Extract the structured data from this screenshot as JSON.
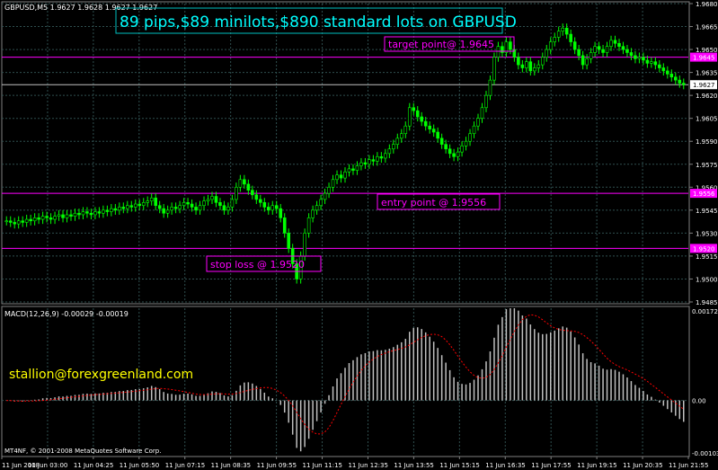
{
  "window": {
    "title": "GBPUSD,M5  1.9627 1.9628 1.9627 1.9627"
  },
  "annotations": {
    "headline": "89 pips,$89 minilots,$890 standard lots on GBPUSD",
    "target": "target point@ 1.9645",
    "entry": "entry point @ 1.9556",
    "stop": "stop loss @ 1.9520",
    "email": "stallion@forexgreenland.com"
  },
  "macd": {
    "label": "MACD(12,26,9) -0.00029 -0.00019"
  },
  "footer": {
    "copyright": "MT4NF, © 2001-2008 MetaQuotes Software Corp."
  },
  "colors": {
    "background": "#000000",
    "candles": "#00ff00",
    "grid": "#2f4f4f",
    "levels": "#ff00ff",
    "headline": "#00ffff",
    "email": "#ffff00",
    "histogram": "#c0c0c0",
    "signal": "#ff0000",
    "current_price_line": "#c0c0c0"
  },
  "chart_data": [
    {
      "type": "candlestick",
      "symbol": "GBPUSD",
      "timeframe": "M5",
      "ylim": [
        1.9485,
        1.968
      ],
      "y_ticks": [
        "1.9680",
        "1.9665",
        "1.9650",
        "1.9635",
        "1.9620",
        "1.9605",
        "1.9590",
        "1.9575",
        "1.9560",
        "1.9545",
        "1.9530",
        "1.9515",
        "1.9500",
        "1.9485"
      ],
      "price_labels": [
        "1.9645",
        "1.9627",
        "1.9556",
        "1.9520"
      ],
      "levels": [
        {
          "name": "target",
          "value": 1.9645
        },
        {
          "name": "entry",
          "value": 1.9556
        },
        {
          "name": "stop",
          "value": 1.952
        }
      ],
      "current_price": 1.9627,
      "x_tick_labels": [
        "11 Jun 2008",
        "11 Jun 03:00",
        "11 Jun 04:25",
        "11 Jun 05:50",
        "11 Jun 07:15",
        "11 Jun 08:35",
        "11 Jun 09:55",
        "11 Jun 11:15",
        "11 Jun 12:35",
        "11 Jun 13:55",
        "11 Jun 15:15",
        "11 Jun 16:35",
        "11 Jun 17:55",
        "11 Jun 19:15",
        "11 Jun 20:35",
        "11 Jun 21:55"
      ],
      "close": [
        1.9538,
        1.9537,
        1.9536,
        1.9538,
        1.9537,
        1.9539,
        1.9538,
        1.954,
        1.9539,
        1.9541,
        1.954,
        1.9539,
        1.9541,
        1.9542,
        1.954,
        1.9542,
        1.9541,
        1.9543,
        1.9542,
        1.9544,
        1.9543,
        1.9542,
        1.9544,
        1.9543,
        1.9545,
        1.9544,
        1.9546,
        1.9545,
        1.9547,
        1.9546,
        1.9548,
        1.9547,
        1.9549,
        1.9548,
        1.955,
        1.9551,
        1.9553,
        1.9548,
        1.9546,
        1.9543,
        1.9545,
        1.9547,
        1.9546,
        1.9548,
        1.955,
        1.9549,
        1.9547,
        1.9545,
        1.9548,
        1.9551,
        1.9552,
        1.9554,
        1.955,
        1.9548,
        1.9545,
        1.9547,
        1.9552,
        1.956,
        1.9565,
        1.9562,
        1.9558,
        1.9555,
        1.9552,
        1.955,
        1.9547,
        1.9545,
        1.9548,
        1.9546,
        1.954,
        1.953,
        1.952,
        1.951,
        1.95,
        1.9515,
        1.953,
        1.954,
        1.9545,
        1.9548,
        1.9552,
        1.9556,
        1.956,
        1.9565,
        1.9568,
        1.9566,
        1.957,
        1.9572,
        1.9571,
        1.9574,
        1.9576,
        1.9575,
        1.9578,
        1.9577,
        1.958,
        1.9579,
        1.9582,
        1.9585,
        1.9588,
        1.9592,
        1.9595,
        1.96,
        1.9612,
        1.961,
        1.9606,
        1.9603,
        1.96,
        1.9598,
        1.9596,
        1.9592,
        1.9588,
        1.9585,
        1.9582,
        1.958,
        1.9583,
        1.9587,
        1.959,
        1.9595,
        1.96,
        1.9605,
        1.9612,
        1.962,
        1.963,
        1.9645,
        1.9652,
        1.9648,
        1.9655,
        1.965,
        1.9645,
        1.964,
        1.9638,
        1.9642,
        1.9636,
        1.9638,
        1.964,
        1.9645,
        1.965,
        1.9655,
        1.9658,
        1.9662,
        1.9664,
        1.966,
        1.9655,
        1.965,
        1.9646,
        1.964,
        1.9644,
        1.9648,
        1.9652,
        1.965,
        1.9648,
        1.9652,
        1.9656,
        1.9654,
        1.9652,
        1.965,
        1.9648,
        1.9646,
        1.9644,
        1.9645,
        1.9643,
        1.9641,
        1.9642,
        1.964,
        1.9638,
        1.9636,
        1.9634,
        1.9632,
        1.963,
        1.9628,
        1.9627
      ]
    },
    {
      "type": "histogram",
      "name": "MACD(12,26,9)",
      "ylim": [
        -0.00103,
        0.00172
      ],
      "y_ticks": [
        "0.00172",
        "0.00",
        "-0.00103"
      ],
      "value_main": -0.00029,
      "value_signal": -0.00019
    }
  ]
}
